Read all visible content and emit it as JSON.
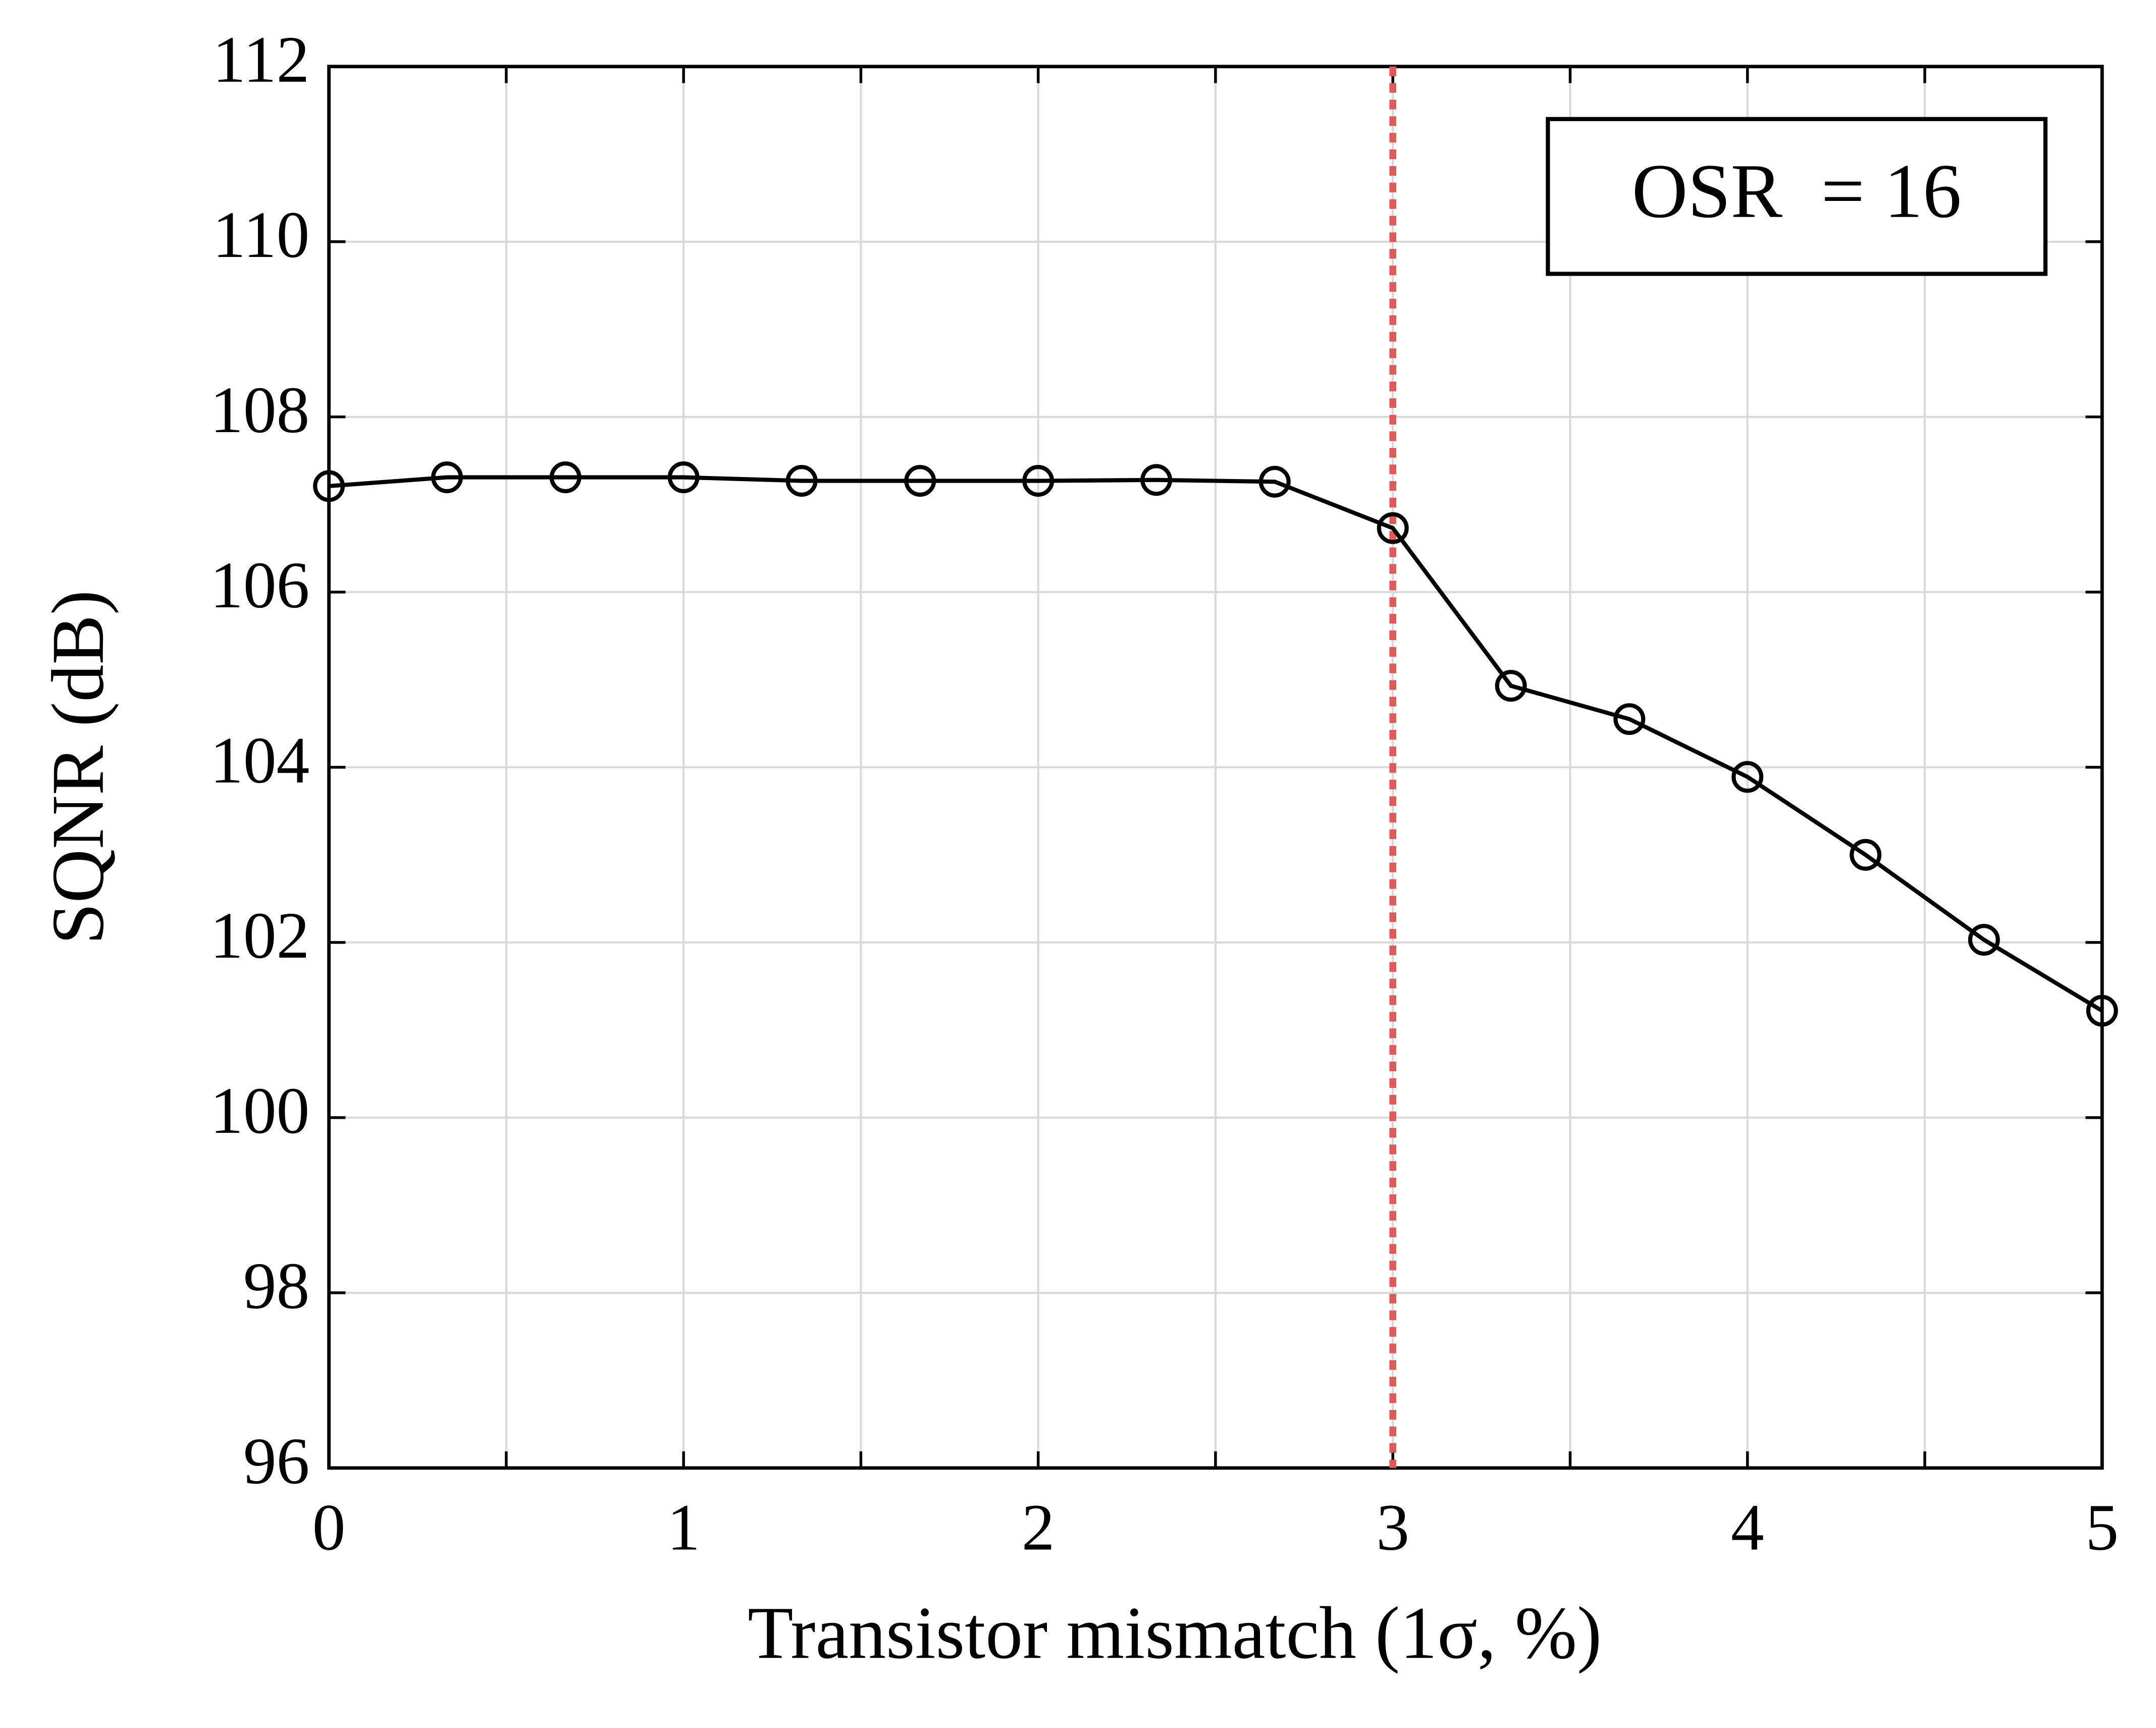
{
  "chart_data": {
    "type": "line",
    "x_label": "Transistor mismatch (1σ, %)",
    "y_label": "SQNR (dB)",
    "x": [
      0,
      0.333,
      0.667,
      1,
      1.333,
      1.667,
      2,
      2.333,
      2.667,
      3,
      3.333,
      3.667,
      4,
      4.333,
      4.667,
      5
    ],
    "series": [
      {
        "color": "#000000",
        "marker": "circle",
        "values": [
          107.21,
          107.31,
          107.31,
          107.31,
          107.27,
          107.27,
          107.27,
          107.28,
          107.26,
          106.73,
          104.93,
          104.55,
          103.89,
          103.0,
          102.03,
          101.22
        ]
      }
    ],
    "xlim": [
      0,
      5
    ],
    "xticks": [
      0,
      1,
      2,
      3,
      4,
      5
    ],
    "x_minor_ticks": [
      0.5,
      1.5,
      2.5,
      3.5,
      4.5
    ],
    "ylim": [
      96,
      112
    ],
    "yticks": [
      96,
      98,
      100,
      102,
      104,
      106,
      108,
      110,
      112
    ],
    "grid": true,
    "vline": {
      "x": 3,
      "color": "#e05a5a"
    },
    "annotation": "OSR  = 16"
  }
}
